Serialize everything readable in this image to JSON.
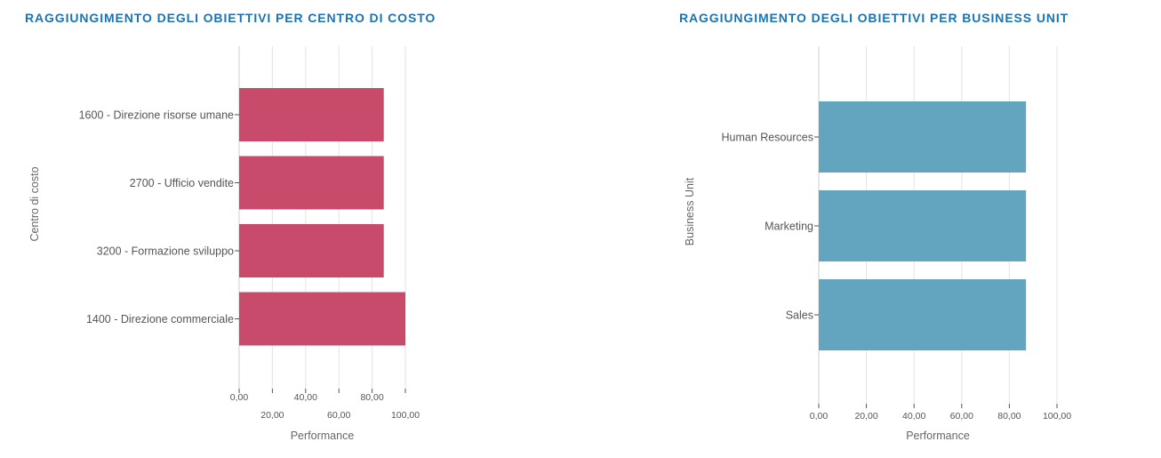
{
  "chart_data": [
    {
      "id": "cost-center",
      "type": "bar",
      "orientation": "horizontal",
      "title": "RAGGIUNGIMENTO DEGLI OBIETTIVI PER CENTRO DI COSTO",
      "xlabel": "Performance",
      "ylabel": "Centro di costo",
      "categories": [
        "1600 - Direzione risorse umane",
        "2700 - Ufficio vendite",
        "3200 - Formazione sviluppo",
        "1400 - Direzione commerciale"
      ],
      "values": [
        87,
        87,
        87,
        100
      ],
      "xlim": [
        0,
        100
      ],
      "ticks": [
        "0,00",
        "20,00",
        "40,00",
        "60,00",
        "80,00",
        "100,00"
      ],
      "tick_values": [
        0,
        20,
        40,
        60,
        80,
        100
      ],
      "tick_labels_staggered": true,
      "grid": true,
      "color": "#c84b6b"
    },
    {
      "id": "business-unit",
      "type": "bar",
      "orientation": "horizontal",
      "title": "RAGGIUNGIMENTO DEGLI OBIETTIVI PER BUSINESS UNIT",
      "xlabel": "Performance",
      "ylabel": "Business Unit",
      "categories": [
        "Human Resources",
        "Marketing",
        "Sales"
      ],
      "values": [
        87,
        87,
        87
      ],
      "xlim": [
        0,
        100
      ],
      "ticks": [
        "0,00",
        "20,00",
        "40,00",
        "60,00",
        "80,00",
        "100,00"
      ],
      "tick_values": [
        0,
        20,
        40,
        60,
        80,
        100
      ],
      "tick_labels_staggered": false,
      "grid": true,
      "color": "#63a4bf"
    }
  ]
}
